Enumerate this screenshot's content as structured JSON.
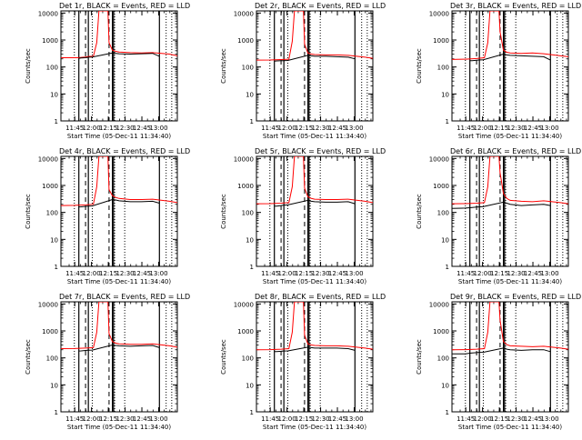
{
  "chart_data": {
    "type": "line",
    "ylabel": "Counts/sec",
    "xlabel": "Start Time (05-Dec-11 11:34:40)",
    "xticks": [
      "11:45",
      "12:00",
      "12:15",
      "12:30",
      "12:45",
      "13:00"
    ],
    "xtick_minutes": [
      10.33,
      25.33,
      40.33,
      55.33,
      70.33,
      85.33
    ],
    "xlim_minutes": [
      -2,
      102
    ],
    "ylim": [
      1,
      12000
    ],
    "yscale": "log",
    "yticks": [
      "1",
      "10",
      "100",
      "1000",
      "10000"
    ],
    "ytick_values": [
      1,
      10,
      100,
      1000,
      10000
    ],
    "legend_text": "BLACK = Events, RED = LLD",
    "series_colors": {
      "events": "#000000",
      "lld": "#ff0000"
    },
    "panels": [
      {
        "title": "Det 1r, BLACK = Events, RED = LLD",
        "det_label": "Det 1r,",
        "lld": {
          "x": [
            -2,
            14,
            14.5,
            16,
            20,
            22,
            22.5,
            27,
            30,
            32,
            33,
            35,
            37,
            40,
            41,
            44,
            47,
            50,
            60,
            70,
            80,
            95,
            102
          ],
          "y": [
            220,
            220,
            225,
            228,
            235,
            240,
            245,
            250,
            800,
            12000,
            12000,
            12000,
            12000,
            12000,
            800,
            420,
            380,
            360,
            340,
            330,
            340,
            300,
            260
          ]
        },
        "events": {
          "x": [
            14,
            16,
            20,
            22,
            22.5,
            26,
            44,
            47,
            50,
            60,
            70,
            80,
            86
          ],
          "y": [
            210,
            215,
            220,
            228,
            230,
            232,
            330,
            320,
            310,
            300,
            310,
            320,
            250
          ]
        }
      },
      {
        "title": "Det 2r, BLACK = Events, RED = LLD",
        "det_label": "Det 2r,",
        "lld": {
          "x": [
            -2,
            10,
            20,
            27,
            30,
            32,
            33,
            35,
            40,
            41,
            44,
            47,
            50,
            60,
            70,
            80,
            95,
            102
          ],
          "y": [
            180,
            182,
            188,
            195,
            900,
            12000,
            12000,
            12000,
            12000,
            700,
            330,
            300,
            290,
            280,
            280,
            270,
            230,
            210
          ]
        },
        "events": {
          "x": [
            14,
            16,
            20,
            22,
            26,
            44,
            47,
            50,
            60,
            70,
            80,
            86
          ],
          "y": [
            165,
            168,
            170,
            172,
            175,
            270,
            260,
            250,
            250,
            240,
            230,
            200
          ]
        }
      },
      {
        "title": "Det 3r, BLACK = Events, RED = LLD",
        "det_label": "Det 3r,",
        "lld": {
          "x": [
            -2,
            10,
            20,
            27,
            30,
            32,
            33,
            35,
            40,
            41,
            44,
            47,
            50,
            60,
            70,
            80,
            95,
            102
          ],
          "y": [
            190,
            195,
            205,
            220,
            800,
            12000,
            12000,
            12000,
            12000,
            2000,
            420,
            350,
            330,
            320,
            330,
            310,
            260,
            240
          ]
        },
        "events": {
          "x": [
            14,
            16,
            20,
            22,
            26,
            44,
            47,
            50,
            60,
            70,
            80,
            86
          ],
          "y": [
            170,
            172,
            178,
            182,
            185,
            300,
            280,
            270,
            260,
            250,
            240,
            180
          ]
        }
      },
      {
        "title": "Det 4r, BLACK = Events, RED = LLD",
        "det_label": "Det 4r,",
        "lld": {
          "x": [
            -2,
            10,
            20,
            27,
            30,
            32,
            33,
            35,
            40,
            41,
            44,
            47,
            50,
            60,
            70,
            80,
            95,
            102
          ],
          "y": [
            180,
            183,
            190,
            200,
            900,
            12000,
            12000,
            12000,
            12000,
            700,
            420,
            360,
            330,
            300,
            300,
            310,
            260,
            230
          ]
        },
        "events": {
          "x": [
            14,
            16,
            20,
            22,
            26,
            44,
            47,
            50,
            60,
            70,
            80,
            86
          ],
          "y": [
            160,
            162,
            168,
            172,
            175,
            300,
            290,
            270,
            250,
            250,
            260,
            220
          ]
        }
      },
      {
        "title": "Det 5r, BLACK = Events, RED = LLD",
        "det_label": "Det 5r,",
        "lld": {
          "x": [
            -2,
            10,
            20,
            27,
            30,
            32,
            33,
            35,
            40,
            41,
            44,
            47,
            50,
            60,
            70,
            80,
            95,
            102
          ],
          "y": [
            210,
            212,
            220,
            230,
            900,
            12000,
            12000,
            12000,
            12000,
            800,
            380,
            330,
            310,
            300,
            300,
            310,
            260,
            230
          ]
        },
        "events": {
          "x": [
            14,
            16,
            20,
            22,
            26,
            44,
            47,
            50,
            60,
            70,
            80,
            86
          ],
          "y": [
            170,
            172,
            180,
            185,
            190,
            280,
            260,
            250,
            240,
            240,
            250,
            210
          ]
        }
      },
      {
        "title": "Det 6r, BLACK = Events, RED = LLD",
        "det_label": "Det 6r,",
        "lld": {
          "x": [
            -2,
            10,
            20,
            27,
            30,
            32,
            33,
            35,
            40,
            41,
            44,
            47,
            50,
            60,
            70,
            80,
            95,
            102
          ],
          "y": [
            210,
            212,
            220,
            230,
            900,
            12000,
            12000,
            12000,
            12000,
            3000,
            500,
            330,
            280,
            260,
            250,
            270,
            230,
            210
          ]
        },
        "events": {
          "x": [
            -2,
            10,
            14,
            16,
            20,
            22,
            26,
            44,
            47,
            50,
            60,
            70,
            80,
            86
          ],
          "y": [
            140,
            145,
            150,
            152,
            158,
            160,
            165,
            240,
            220,
            200,
            180,
            190,
            200,
            180
          ]
        }
      },
      {
        "title": "Det 7r, BLACK = Events, RED = LLD",
        "det_label": "Det 7r,",
        "lld": {
          "x": [
            -2,
            10,
            20,
            27,
            30,
            32,
            33,
            35,
            40,
            41,
            44,
            47,
            50,
            60,
            70,
            80,
            95,
            102
          ],
          "y": [
            220,
            222,
            230,
            240,
            900,
            12000,
            12000,
            12000,
            12000,
            800,
            400,
            350,
            330,
            320,
            320,
            330,
            280,
            250
          ]
        },
        "events": {
          "x": [
            14,
            16,
            20,
            22,
            26,
            44,
            47,
            50,
            60,
            70,
            80,
            86
          ],
          "y": [
            180,
            182,
            188,
            192,
            195,
            300,
            290,
            280,
            270,
            280,
            290,
            240
          ]
        }
      },
      {
        "title": "Det 8r, BLACK = Events, RED = LLD",
        "det_label": "Det 8r,",
        "lld": {
          "x": [
            -2,
            10,
            20,
            27,
            30,
            32,
            33,
            35,
            40,
            41,
            44,
            47,
            50,
            60,
            70,
            80,
            95,
            102
          ],
          "y": [
            200,
            202,
            210,
            220,
            900,
            12000,
            12000,
            12000,
            12000,
            700,
            330,
            300,
            290,
            280,
            280,
            270,
            230,
            210
          ]
        },
        "events": {
          "x": [
            14,
            16,
            20,
            22,
            26,
            44,
            47,
            50,
            60,
            70,
            80,
            86
          ],
          "y": [
            170,
            172,
            176,
            180,
            182,
            250,
            240,
            230,
            230,
            230,
            220,
            190
          ]
        }
      },
      {
        "title": "Det 9r, BLACK = Events, RED = LLD",
        "det_label": "Det 9r,",
        "lld": {
          "x": [
            -2,
            10,
            20,
            27,
            30,
            32,
            33,
            35,
            40,
            41,
            44,
            47,
            50,
            60,
            70,
            80,
            95,
            102
          ],
          "y": [
            200,
            203,
            210,
            220,
            900,
            12000,
            12000,
            12000,
            12000,
            2500,
            400,
            310,
            280,
            270,
            260,
            270,
            230,
            210
          ]
        },
        "events": {
          "x": [
            -2,
            10,
            14,
            16,
            20,
            22,
            26,
            44,
            47,
            50,
            60,
            70,
            80,
            86
          ],
          "y": [
            140,
            142,
            150,
            152,
            156,
            160,
            162,
            230,
            210,
            200,
            190,
            200,
            200,
            170
          ]
        }
      }
    ],
    "vertical_markers": {
      "solid_minutes": [
        14,
        22.5,
        44,
        45,
        86
      ],
      "dashed_minutes": [
        20,
        41
      ],
      "dotted_minutes": [
        10,
        26,
        46,
        55,
        92,
        97
      ]
    }
  }
}
